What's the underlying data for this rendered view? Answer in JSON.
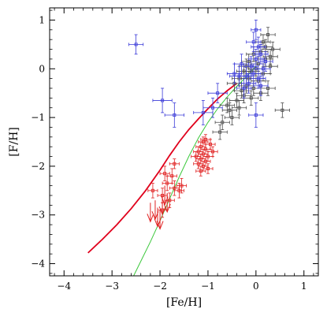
{
  "chart_data": {
    "type": "scatter",
    "title": "",
    "xlabel": "[Fe/H]",
    "ylabel": "[F/H]",
    "xlim": [
      -4.3,
      1.3
    ],
    "ylim": [
      -4.25,
      1.25
    ],
    "x_ticks": [
      -4,
      -3,
      -2,
      -1,
      0,
      1
    ],
    "y_ticks": [
      -4,
      -3,
      -2,
      -1,
      0,
      1
    ],
    "x_tick_labels": [
      "−4",
      "−3",
      "−2",
      "−1",
      "0",
      "1"
    ],
    "y_tick_labels": [
      "−4",
      "−3",
      "−2",
      "−1",
      "0",
      "1"
    ],
    "grid": false,
    "legend": "none",
    "series": [
      {
        "kind": "points-with-errors",
        "color": "#4a4a4a",
        "marker": "open-square",
        "points": [
          {
            "x": 0.25,
            "y": 0.7,
            "xerr": 0.15,
            "yerr": 0.15
          },
          {
            "x": 0.15,
            "y": 0.55,
            "xerr": 0.15,
            "yerr": 0.15
          },
          {
            "x": 0.35,
            "y": 0.4,
            "xerr": 0.15,
            "yerr": 0.15
          },
          {
            "x": 0.3,
            "y": 0.25,
            "xerr": 0.15,
            "yerr": 0.15
          },
          {
            "x": 0.2,
            "y": 0.2,
            "xerr": 0.15,
            "yerr": 0.15
          },
          {
            "x": 0.1,
            "y": 0.35,
            "xerr": 0.15,
            "yerr": 0.15
          },
          {
            "x": 0.05,
            "y": 0.1,
            "xerr": 0.15,
            "yerr": 0.15
          },
          {
            "x": -0.05,
            "y": 0.3,
            "xerr": 0.15,
            "yerr": 0.15
          },
          {
            "x": 0.0,
            "y": 0.0,
            "xerr": 0.15,
            "yerr": 0.15
          },
          {
            "x": -0.1,
            "y": -0.05,
            "xerr": 0.15,
            "yerr": 0.15
          },
          {
            "x": 0.15,
            "y": -0.1,
            "xerr": 0.15,
            "yerr": 0.15
          },
          {
            "x": 0.05,
            "y": -0.25,
            "xerr": 0.15,
            "yerr": 0.15
          },
          {
            "x": -0.15,
            "y": -0.2,
            "xerr": 0.15,
            "yerr": 0.15
          },
          {
            "x": -0.2,
            "y": -0.35,
            "xerr": 0.15,
            "yerr": 0.15
          },
          {
            "x": -0.05,
            "y": -0.4,
            "xerr": 0.15,
            "yerr": 0.15
          },
          {
            "x": -0.3,
            "y": -0.45,
            "xerr": 0.15,
            "yerr": 0.15
          },
          {
            "x": -0.25,
            "y": -0.55,
            "xerr": 0.15,
            "yerr": 0.15
          },
          {
            "x": -0.1,
            "y": -0.6,
            "xerr": 0.15,
            "yerr": 0.15
          },
          {
            "x": -0.4,
            "y": -0.65,
            "xerr": 0.15,
            "yerr": 0.15
          },
          {
            "x": -0.35,
            "y": -0.8,
            "xerr": 0.15,
            "yerr": 0.15
          },
          {
            "x": -0.55,
            "y": -0.85,
            "xerr": 0.15,
            "yerr": 0.15
          },
          {
            "x": -0.5,
            "y": -1.0,
            "xerr": 0.15,
            "yerr": 0.15
          },
          {
            "x": -0.7,
            "y": -1.1,
            "xerr": 0.15,
            "yerr": 0.15
          },
          {
            "x": -0.75,
            "y": -1.3,
            "xerr": 0.15,
            "yerr": 0.15
          },
          {
            "x": -0.6,
            "y": -0.75,
            "xerr": 0.15,
            "yerr": 0.15
          },
          {
            "x": -0.45,
            "y": -0.3,
            "xerr": 0.15,
            "yerr": 0.15
          },
          {
            "x": 0.25,
            "y": -0.4,
            "xerr": 0.15,
            "yerr": 0.15
          },
          {
            "x": 0.3,
            "y": 0.05,
            "xerr": 0.15,
            "yerr": 0.15
          },
          {
            "x": -0.15,
            "y": 0.15,
            "xerr": 0.15,
            "yerr": 0.15
          },
          {
            "x": 0.55,
            "y": -0.85,
            "xerr": 0.15,
            "yerr": 0.15
          },
          {
            "x": -0.25,
            "y": -0.05,
            "xerr": 0.15,
            "yerr": 0.15
          },
          {
            "x": -0.35,
            "y": -0.2,
            "xerr": 0.15,
            "yerr": 0.15
          },
          {
            "x": 0.1,
            "y": -0.5,
            "xerr": 0.15,
            "yerr": 0.15
          },
          {
            "x": 0.2,
            "y": 0.45,
            "xerr": 0.15,
            "yerr": 0.15
          },
          {
            "x": -0.2,
            "y": 0.05,
            "xerr": 0.15,
            "yerr": 0.15
          }
        ]
      },
      {
        "kind": "points-with-errors",
        "color": "#3a3ad8",
        "marker": "open-square",
        "points": [
          {
            "x": -2.5,
            "y": 0.5,
            "xerr": 0.15,
            "yerr": 0.2
          },
          {
            "x": -1.95,
            "y": -0.65,
            "xerr": 0.2,
            "yerr": 0.25
          },
          {
            "x": -1.7,
            "y": -0.95,
            "xerr": 0.2,
            "yerr": 0.25
          },
          {
            "x": -1.1,
            "y": -0.9,
            "xerr": 0.2,
            "yerr": 0.25
          },
          {
            "x": -0.9,
            "y": -0.8,
            "xerr": 0.2,
            "yerr": 0.2
          },
          {
            "x": -0.8,
            "y": -0.5,
            "xerr": 0.2,
            "yerr": 0.2
          },
          {
            "x": -0.35,
            "y": -0.15,
            "xerr": 0.2,
            "yerr": 0.2
          },
          {
            "x": 0.0,
            "y": -0.95,
            "xerr": 0.15,
            "yerr": 0.25
          },
          {
            "x": 0.0,
            "y": 0.8,
            "xerr": 0.1,
            "yerr": 0.2
          },
          {
            "x": -0.05,
            "y": 0.55,
            "xerr": 0.15,
            "yerr": 0.2
          },
          {
            "x": 0.1,
            "y": 0.3,
            "xerr": 0.15,
            "yerr": 0.2
          },
          {
            "x": 0.0,
            "y": 0.2,
            "xerr": 0.15,
            "yerr": 0.2
          },
          {
            "x": -0.1,
            "y": 0.05,
            "xerr": 0.15,
            "yerr": 0.2
          },
          {
            "x": -0.05,
            "y": -0.1,
            "xerr": 0.15,
            "yerr": 0.2
          },
          {
            "x": -0.2,
            "y": -0.15,
            "xerr": 0.15,
            "yerr": 0.2
          },
          {
            "x": 0.05,
            "y": -0.2,
            "xerr": 0.15,
            "yerr": 0.2
          },
          {
            "x": -0.15,
            "y": -0.3,
            "xerr": 0.15,
            "yerr": 0.2
          },
          {
            "x": 0.15,
            "y": 0.0,
            "xerr": 0.15,
            "yerr": 0.2
          },
          {
            "x": -0.3,
            "y": 0.1,
            "xerr": 0.15,
            "yerr": 0.2
          },
          {
            "x": 0.2,
            "y": 0.15,
            "xerr": 0.15,
            "yerr": 0.2
          },
          {
            "x": -0.25,
            "y": -0.4,
            "xerr": 0.15,
            "yerr": 0.2
          },
          {
            "x": 0.05,
            "y": 0.45,
            "xerr": 0.15,
            "yerr": 0.2
          },
          {
            "x": -0.45,
            "y": -0.1,
            "xerr": 0.15,
            "yerr": 0.2
          },
          {
            "x": 0.1,
            "y": -0.35,
            "xerr": 0.15,
            "yerr": 0.2
          }
        ]
      },
      {
        "kind": "points-with-errors",
        "color": "#e02020",
        "marker": "open-square",
        "points": [
          {
            "x": -1.1,
            "y": -1.5,
            "xerr": 0.1,
            "yerr": 0.1
          },
          {
            "x": -1.15,
            "y": -1.6,
            "xerr": 0.1,
            "yerr": 0.1
          },
          {
            "x": -1.05,
            "y": -1.65,
            "xerr": 0.1,
            "yerr": 0.1
          },
          {
            "x": -1.2,
            "y": -1.7,
            "xerr": 0.1,
            "yerr": 0.1
          },
          {
            "x": -1.1,
            "y": -1.75,
            "xerr": 0.1,
            "yerr": 0.1
          },
          {
            "x": -1.0,
            "y": -1.8,
            "xerr": 0.1,
            "yerr": 0.1
          },
          {
            "x": -1.15,
            "y": -1.85,
            "xerr": 0.1,
            "yerr": 0.1
          },
          {
            "x": -1.05,
            "y": -1.9,
            "xerr": 0.1,
            "yerr": 0.1
          },
          {
            "x": -1.2,
            "y": -1.95,
            "xerr": 0.1,
            "yerr": 0.1
          },
          {
            "x": -1.1,
            "y": -2.0,
            "xerr": 0.1,
            "yerr": 0.1
          },
          {
            "x": -1.0,
            "y": -2.05,
            "xerr": 0.1,
            "yerr": 0.1
          },
          {
            "x": -1.15,
            "y": -2.1,
            "xerr": 0.1,
            "yerr": 0.1
          },
          {
            "x": -0.95,
            "y": -1.55,
            "xerr": 0.1,
            "yerr": 0.1
          },
          {
            "x": -1.25,
            "y": -1.8,
            "xerr": 0.1,
            "yerr": 0.1
          },
          {
            "x": -0.9,
            "y": -1.7,
            "xerr": 0.1,
            "yerr": 0.1
          },
          {
            "x": -1.05,
            "y": -1.45,
            "xerr": 0.1,
            "yerr": 0.1
          },
          {
            "x": -1.7,
            "y": -1.95,
            "xerr": 0.1,
            "yerr": 0.1
          },
          {
            "x": -1.9,
            "y": -2.15,
            "xerr": 0.1,
            "yerr": 0.15
          },
          {
            "x": -1.75,
            "y": -2.2,
            "xerr": 0.1,
            "yerr": 0.15
          },
          {
            "x": -1.85,
            "y": -2.35,
            "xerr": 0.1,
            "yerr": 0.15
          },
          {
            "x": -1.7,
            "y": -2.45,
            "xerr": 0.1,
            "yerr": 0.15
          },
          {
            "x": -1.6,
            "y": -2.5,
            "xerr": 0.1,
            "yerr": 0.15
          },
          {
            "x": -1.95,
            "y": -2.6,
            "xerr": 0.1,
            "yerr": 0.15
          },
          {
            "x": -1.8,
            "y": -2.7,
            "xerr": 0.1,
            "yerr": 0.15
          },
          {
            "x": -1.95,
            "y": -2.9,
            "xerr": 0.1,
            "yerr": 0.15
          },
          {
            "x": -2.15,
            "y": -2.5,
            "xerr": 0.1,
            "yerr": 0.15
          },
          {
            "x": -1.55,
            "y": -2.4,
            "xerr": 0.1,
            "yerr": 0.15
          }
        ]
      },
      {
        "kind": "upper-limits",
        "color": "#e02020",
        "points": [
          {
            "x": -2.1,
            "y": -2.7
          },
          {
            "x": -2.05,
            "y": -2.85
          },
          {
            "x": -1.95,
            "y": -2.6
          },
          {
            "x": -1.9,
            "y": -2.4
          },
          {
            "x": -2.2,
            "y": -2.75
          },
          {
            "x": -1.85,
            "y": -2.55
          },
          {
            "x": -2.0,
            "y": -2.9
          }
        ]
      },
      {
        "kind": "line",
        "color": "#e0001c",
        "width": 1.8,
        "x": [
          -3.5,
          -3.2,
          -2.9,
          -2.6,
          -2.3,
          -2.0,
          -1.8,
          -1.6,
          -1.4,
          -1.2,
          -1.0,
          -0.8,
          -0.6,
          -0.4
        ],
        "y": [
          -3.78,
          -3.5,
          -3.2,
          -2.87,
          -2.5,
          -2.08,
          -1.78,
          -1.5,
          -1.25,
          -1.03,
          -0.82,
          -0.62,
          -0.45,
          -0.3
        ]
      },
      {
        "kind": "line",
        "color": "#3cc83c",
        "width": 1.0,
        "x": [
          -2.55,
          -2.4,
          -2.2,
          -2.0,
          -1.8,
          -1.6,
          -1.4,
          -1.2,
          -1.0,
          -0.8,
          -0.6,
          -0.4,
          -0.2,
          0.0
        ],
        "y": [
          -4.25,
          -3.95,
          -3.55,
          -3.12,
          -2.67,
          -2.22,
          -1.8,
          -1.42,
          -1.1,
          -0.82,
          -0.58,
          -0.36,
          -0.16,
          0.05
        ]
      }
    ]
  }
}
